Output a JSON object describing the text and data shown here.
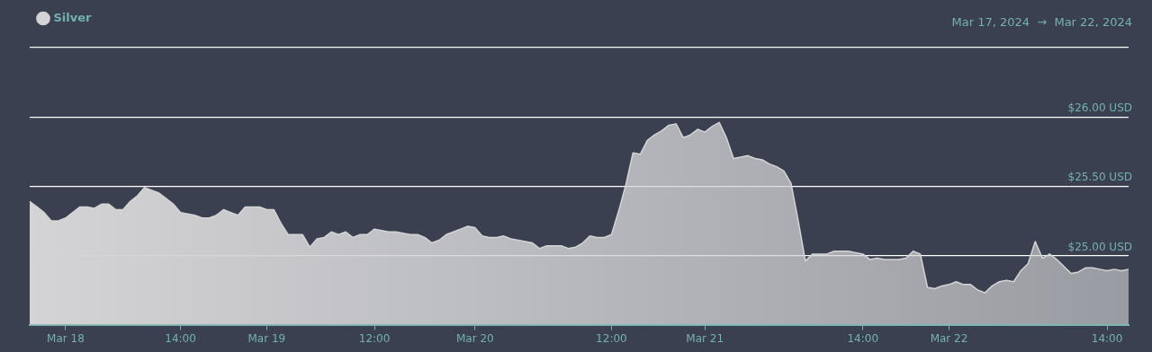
{
  "chart_data": {
    "type": "area",
    "subtitle": "Mar 17, 2024  →  Mar 22, 2024",
    "categories": [
      null,
      null,
      null,
      null,
      null,
      "Mar 18",
      null,
      null,
      null,
      null,
      null,
      null,
      null,
      null,
      null,
      null,
      null,
      null,
      null,
      null,
      null,
      "14:00",
      null,
      null,
      null,
      null,
      null,
      null,
      null,
      null,
      null,
      null,
      null,
      "Mar 19",
      null,
      null,
      null,
      null,
      null,
      null,
      null,
      null,
      null,
      null,
      null,
      null,
      null,
      null,
      "12:00",
      null,
      null,
      null,
      null,
      null,
      null,
      null,
      null,
      null,
      null,
      null,
      null,
      null,
      "Mar 20",
      null,
      null,
      null,
      null,
      null,
      null,
      null,
      null,
      null,
      null,
      null,
      null,
      null,
      null,
      null,
      null,
      null,
      null,
      "12:00",
      null,
      null,
      null,
      null,
      null,
      null,
      null,
      null,
      null,
      null,
      null,
      null,
      "Mar 21",
      null,
      null,
      null,
      null,
      null,
      null,
      null,
      null,
      null,
      null,
      null,
      null,
      null,
      null,
      null,
      null,
      null,
      null,
      null,
      null,
      null,
      "14:00",
      null,
      null,
      null,
      null,
      null,
      null,
      null,
      null,
      null,
      null,
      null,
      "Mar 22",
      null,
      null,
      null,
      null,
      null,
      null,
      null,
      null,
      null,
      null,
      null,
      null,
      null,
      null,
      null,
      null,
      null,
      null,
      null,
      null,
      null,
      "14:00",
      null,
      null,
      null
    ],
    "series": [
      {
        "name": "Silver",
        "color": "#d4d4d6",
        "values": [
          25.39,
          25.35,
          25.31,
          25.25,
          25.25,
          25.27,
          25.31,
          25.35,
          25.35,
          25.34,
          25.37,
          25.37,
          25.33,
          25.33,
          25.39,
          25.43,
          25.49,
          25.47,
          25.45,
          25.41,
          25.37,
          25.31,
          25.3,
          25.29,
          25.27,
          25.27,
          25.29,
          25.33,
          25.31,
          25.29,
          25.35,
          25.35,
          25.35,
          25.33,
          25.33,
          25.23,
          25.15,
          25.15,
          25.15,
          25.06,
          25.12,
          25.13,
          25.17,
          25.15,
          25.17,
          25.13,
          25.15,
          25.15,
          25.19,
          25.18,
          25.17,
          25.17,
          25.16,
          25.15,
          25.15,
          25.13,
          25.09,
          25.11,
          25.15,
          25.17,
          25.19,
          25.21,
          25.2,
          25.14,
          25.13,
          25.13,
          25.14,
          25.12,
          25.11,
          25.1,
          25.09,
          25.05,
          25.07,
          25.07,
          25.07,
          25.05,
          25.06,
          25.09,
          25.14,
          25.13,
          25.13,
          25.15,
          25.32,
          25.51,
          25.74,
          25.73,
          25.83,
          25.87,
          25.9,
          25.94,
          25.95,
          25.85,
          25.87,
          25.91,
          25.89,
          25.93,
          25.96,
          25.85,
          25.7,
          25.71,
          25.72,
          25.7,
          25.69,
          25.66,
          25.64,
          25.61,
          25.52,
          25.25,
          24.96,
          25.01,
          25.01,
          25.01,
          25.03,
          25.03,
          25.03,
          25.02,
          25.01,
          24.97,
          24.98,
          24.97,
          24.97,
          24.97,
          24.98,
          25.03,
          25.01,
          24.77,
          24.76,
          24.78,
          24.79,
          24.81,
          24.79,
          24.79,
          24.75,
          24.73,
          24.78,
          24.81,
          24.82,
          24.81,
          24.89,
          24.94,
          25.1,
          24.98,
          25.01,
          24.97,
          24.92,
          24.87,
          24.88,
          24.91,
          24.91,
          24.9,
          24.89,
          24.9,
          24.89,
          24.9
        ]
      }
    ],
    "ylim": [
      24.5,
      26.5
    ],
    "yticks": [
      {
        "value": 25,
        "label": "$25.00 USD"
      },
      {
        "value": 25.5,
        "label": "$25.50 USD"
      },
      {
        "value": 26,
        "label": "$26.00 USD"
      },
      {
        "value": 26.5,
        "label": null
      }
    ],
    "grid": "y",
    "legend": "top left",
    "marker": "none",
    "line_style": "solid"
  }
}
